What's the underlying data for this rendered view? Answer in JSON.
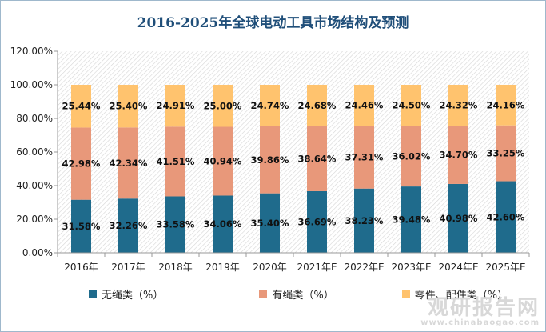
{
  "title": "2016-2025年全球电动工具市场结构及预测",
  "chart_data": {
    "type": "bar",
    "stacked": true,
    "title": "2016-2025年全球电动工具市场结构及预测",
    "categories": [
      "2016年",
      "2017年",
      "2018年",
      "2019年",
      "2020年",
      "2021年E",
      "2022年E",
      "2023年E",
      "2024年E",
      "2025年E"
    ],
    "series": [
      {
        "name": "无绳类（%）",
        "color": "#1f6b8c",
        "values": [
          31.58,
          32.26,
          33.58,
          34.06,
          35.4,
          36.69,
          38.23,
          39.48,
          40.98,
          42.6
        ],
        "labels": [
          "31.58%",
          "32.26%",
          "33.58%",
          "34.06%",
          "35.40%",
          "36.69%",
          "38.23%",
          "39.48%",
          "40.98%",
          "42.60%"
        ]
      },
      {
        "name": "有绳类（%）",
        "color": "#e8987a",
        "values": [
          42.98,
          42.34,
          41.51,
          40.94,
          39.86,
          38.64,
          37.31,
          36.02,
          34.7,
          33.25
        ],
        "labels": [
          "42.98%",
          "42.34%",
          "41.51%",
          "40.94%",
          "39.86%",
          "38.64%",
          "37.31%",
          "36.02%",
          "34.70%",
          "33.25%"
        ]
      },
      {
        "name": "零件、配件类（%）",
        "color": "#ffc36e",
        "values": [
          25.44,
          25.4,
          24.91,
          25.0,
          24.74,
          24.68,
          24.46,
          24.5,
          24.32,
          24.16
        ],
        "labels": [
          "25.44%",
          "25.40%",
          "24.91%",
          "25.00%",
          "24.74%",
          "24.68%",
          "24.46%",
          "24.50%",
          "24.32%",
          "24.16%"
        ]
      }
    ],
    "ylim": [
      0,
      120
    ],
    "yticks": [
      "0.00%",
      "20.00%",
      "40.00%",
      "60.00%",
      "80.00%",
      "100.00%",
      "120.00%"
    ],
    "grid": false,
    "legend": "bottom"
  },
  "watermark": {
    "main": "观研报告网",
    "url": "www.chinabaogao.com"
  }
}
